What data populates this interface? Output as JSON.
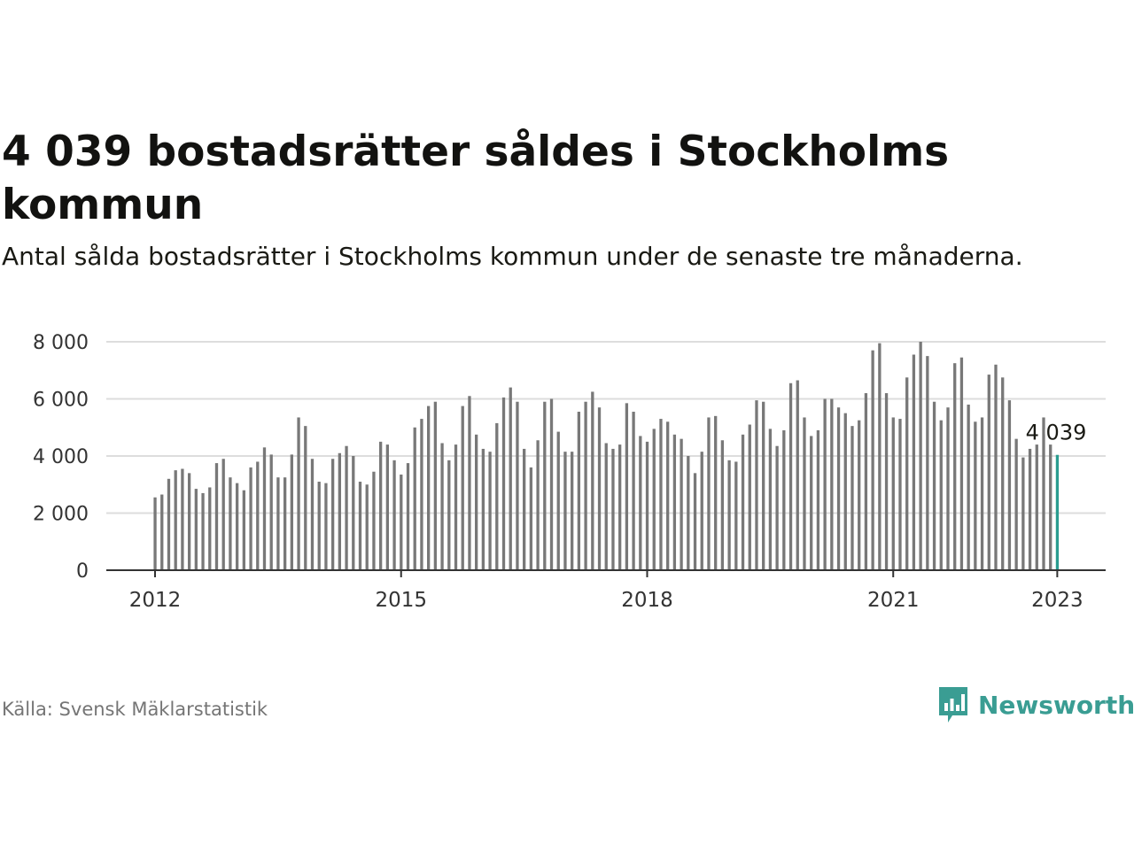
{
  "header": {
    "title": "4 039 bostadsrätter såldes i Stockholms kommun",
    "subtitle": "Antal sålda bostadsrätter i Stockholms kommun under de senaste tre månaderna."
  },
  "footer": {
    "source": "Källa: Svensk Mäklarstatistik",
    "brand": "Newsworthy"
  },
  "colors": {
    "bar": "#787878",
    "highlight": "#2a9d90",
    "grid": "#dddddd",
    "axis": "#333333",
    "brand": "#3a9d93"
  },
  "chart_data": {
    "type": "bar",
    "title": "4 039 bostadsrätter såldes i Stockholms kommun",
    "xlabel": "",
    "ylabel": "",
    "ylim": [
      0,
      8000
    ],
    "yticks": [
      0,
      2000,
      4000,
      6000,
      8000
    ],
    "ytick_labels": [
      "0",
      "2 000",
      "4 000",
      "6 000",
      "8 000"
    ],
    "xtick_labels": [
      "2012",
      "2015",
      "2018",
      "2021",
      "2023"
    ],
    "grid": true,
    "legend": "none",
    "annotation": {
      "label": "4 039",
      "value": 4039,
      "date": "2023-01"
    },
    "categories": [
      "2012-01",
      "2012-02",
      "2012-03",
      "2012-04",
      "2012-05",
      "2012-06",
      "2012-07",
      "2012-08",
      "2012-09",
      "2012-10",
      "2012-11",
      "2012-12",
      "2013-01",
      "2013-02",
      "2013-03",
      "2013-04",
      "2013-05",
      "2013-06",
      "2013-07",
      "2013-08",
      "2013-09",
      "2013-10",
      "2013-11",
      "2013-12",
      "2014-01",
      "2014-02",
      "2014-03",
      "2014-04",
      "2014-05",
      "2014-06",
      "2014-07",
      "2014-08",
      "2014-09",
      "2014-10",
      "2014-11",
      "2014-12",
      "2015-01",
      "2015-02",
      "2015-03",
      "2015-04",
      "2015-05",
      "2015-06",
      "2015-07",
      "2015-08",
      "2015-09",
      "2015-10",
      "2015-11",
      "2015-12",
      "2016-01",
      "2016-02",
      "2016-03",
      "2016-04",
      "2016-05",
      "2016-06",
      "2016-07",
      "2016-08",
      "2016-09",
      "2016-10",
      "2016-11",
      "2016-12",
      "2017-01",
      "2017-02",
      "2017-03",
      "2017-04",
      "2017-05",
      "2017-06",
      "2017-07",
      "2017-08",
      "2017-09",
      "2017-10",
      "2017-11",
      "2017-12",
      "2018-01",
      "2018-02",
      "2018-03",
      "2018-04",
      "2018-05",
      "2018-06",
      "2018-07",
      "2018-08",
      "2018-09",
      "2018-10",
      "2018-11",
      "2018-12",
      "2019-01",
      "2019-02",
      "2019-03",
      "2019-04",
      "2019-05",
      "2019-06",
      "2019-07",
      "2019-08",
      "2019-09",
      "2019-10",
      "2019-11",
      "2019-12",
      "2020-01",
      "2020-02",
      "2020-03",
      "2020-04",
      "2020-05",
      "2020-06",
      "2020-07",
      "2020-08",
      "2020-09",
      "2020-10",
      "2020-11",
      "2020-12",
      "2021-01",
      "2021-02",
      "2021-03",
      "2021-04",
      "2021-05",
      "2021-06",
      "2021-07",
      "2021-08",
      "2021-09",
      "2021-10",
      "2021-11",
      "2021-12",
      "2022-01",
      "2022-02",
      "2022-03",
      "2022-04",
      "2022-05",
      "2022-06",
      "2022-07",
      "2022-08",
      "2022-09",
      "2022-10",
      "2022-11",
      "2022-12",
      "2023-01"
    ],
    "values": [
      2550,
      2650,
      3200,
      3500,
      3550,
      3400,
      2850,
      2700,
      2900,
      3750,
      3900,
      3250,
      3050,
      2800,
      3600,
      3800,
      4300,
      4050,
      3250,
      3250,
      4050,
      5350,
      5050,
      3900,
      3100,
      3050,
      3900,
      4100,
      4350,
      4000,
      3100,
      3000,
      3450,
      4500,
      4400,
      3850,
      3350,
      3750,
      5000,
      5300,
      5750,
      5900,
      4450,
      3850,
      4400,
      5750,
      6100,
      4750,
      4250,
      4150,
      5150,
      6050,
      6400,
      5900,
      4250,
      3600,
      4550,
      5900,
      6000,
      4850,
      4150,
      4150,
      5550,
      5900,
      6250,
      5700,
      4450,
      4250,
      4400,
      5850,
      5550,
      4700,
      4500,
      4950,
      5300,
      5200,
      4750,
      4600,
      4000,
      3400,
      4150,
      5350,
      5400,
      4550,
      3850,
      3800,
      4750,
      5100,
      5950,
      5900,
      4950,
      4350,
      4900,
      6550,
      6650,
      5350,
      4700,
      4900,
      6000,
      6000,
      5700,
      5500,
      5050,
      5250,
      6200,
      7700,
      7950,
      6200,
      5350,
      5300,
      6750,
      7550,
      8000,
      7500,
      5900,
      5250,
      5700,
      7250,
      7450,
      5800,
      5200,
      5350,
      6850,
      7200,
      6750,
      5950,
      4600,
      3950,
      4250,
      4400,
      5350,
      4400,
      4039
    ]
  }
}
